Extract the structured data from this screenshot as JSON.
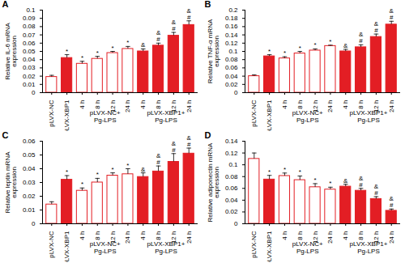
{
  "chart_data": [
    {
      "type": "bar",
      "title": "A",
      "y_label": "Relative IL-6 mRNA\nexpression",
      "categories": [
        "pLVX-NC",
        "pLVX-XBP1",
        "4 h",
        "8 h",
        "12 h",
        "24 h",
        "4 h",
        "8 h",
        "12 h",
        "24 h"
      ],
      "values": [
        0.019,
        0.042,
        0.035,
        0.041,
        0.048,
        0.053,
        0.05,
        0.057,
        0.069,
        0.082
      ],
      "errors": [
        0.002,
        0.004,
        0.003,
        0.003,
        0.002,
        0.003,
        0.003,
        0.003,
        0.004,
        0.005
      ],
      "annotations": [
        null,
        "*",
        "*",
        "*",
        "*",
        "*",
        "&",
        "&\n#",
        "&\n#",
        "&\n#"
      ],
      "color": "#e31e24",
      "colors": [
        "#ffffff",
        "#e31e24",
        "#ffffff",
        "#ffffff",
        "#ffffff",
        "#ffffff",
        "#e31e24",
        "#e31e24",
        "#e31e24",
        "#e31e24"
      ],
      "groups": [
        {
          "label": "pLVX-NC+\nPg-LPS",
          "members": [
            2,
            3,
            4,
            5
          ]
        },
        {
          "label": "pLVX-XBP1+\nPg-LPS",
          "members": [
            6,
            7,
            8,
            9
          ]
        }
      ],
      "ylim": [
        0,
        0.1
      ],
      "yticks": [
        0,
        0.01,
        0.02,
        0.03,
        0.04,
        0.05,
        0.06,
        0.07,
        0.08,
        0.09,
        0.1
      ]
    },
    {
      "type": "bar",
      "title": "B",
      "y_label": "Relative TNF-α mRNA\nexpression",
      "categories": [
        "pLVX-NC",
        "pLVX-XBP1",
        "4 h",
        "8 h",
        "12 h",
        "24 h",
        "4 h",
        "8 h",
        "12 h",
        "24 h"
      ],
      "values": [
        0.04,
        0.088,
        0.083,
        0.095,
        0.102,
        0.113,
        0.1,
        0.11,
        0.135,
        0.165
      ],
      "errors": [
        0.003,
        0.004,
        0.004,
        0.005,
        0.004,
        0.002,
        0.005,
        0.006,
        0.007,
        0.008
      ],
      "annotations": [
        null,
        "*",
        "*",
        "*",
        "*",
        "*",
        "&",
        "&\n#",
        "&\n#",
        "&\n#"
      ],
      "color": "#e31e24",
      "colors": [
        "#ffffff",
        "#e31e24",
        "#ffffff",
        "#ffffff",
        "#ffffff",
        "#ffffff",
        "#e31e24",
        "#e31e24",
        "#e31e24",
        "#e31e24"
      ],
      "groups": [
        {
          "label": "pLVX-NC+\nPg-LPS",
          "members": [
            2,
            3,
            4,
            5
          ]
        },
        {
          "label": "pLVX-XBP1+\nPg-LPS",
          "members": [
            6,
            7,
            8,
            9
          ]
        }
      ],
      "ylim": [
        0,
        0.2
      ],
      "yticks": [
        0,
        0.02,
        0.04,
        0.06,
        0.08,
        0.1,
        0.12,
        0.14,
        0.16,
        0.18,
        0.2
      ]
    },
    {
      "type": "bar",
      "title": "C",
      "y_label": "Relative leptin mRNA\nexpression",
      "categories": [
        "pLVX-NC",
        "pLVX-XBP1",
        "4 h",
        "8 h",
        "12 h",
        "24 h",
        "4 h",
        "8 h",
        "12 h",
        "24 h"
      ],
      "values": [
        0.014,
        0.032,
        0.024,
        0.03,
        0.035,
        0.036,
        0.034,
        0.038,
        0.045,
        0.051
      ],
      "errors": [
        0.002,
        0.003,
        0.002,
        0.003,
        0.002,
        0.004,
        0.003,
        0.004,
        0.006,
        0.004
      ],
      "annotations": [
        null,
        "*",
        "*",
        "*",
        "*",
        "*",
        "&",
        "&\n#",
        "&\n#",
        "&\n#"
      ],
      "color": "#e31e24",
      "colors": [
        "#ffffff",
        "#e31e24",
        "#ffffff",
        "#ffffff",
        "#ffffff",
        "#ffffff",
        "#e31e24",
        "#e31e24",
        "#e31e24",
        "#e31e24"
      ],
      "groups": [
        {
          "label": "pLVX-NC+\nPg-LPS",
          "members": [
            2,
            3,
            4,
            5
          ]
        },
        {
          "label": "pLVX-XBP1+\nPg-LPS",
          "members": [
            6,
            7,
            8,
            9
          ]
        }
      ],
      "ylim": [
        0,
        0.06
      ],
      "yticks": [
        0,
        0.01,
        0.02,
        0.03,
        0.04,
        0.05,
        0.06
      ]
    },
    {
      "type": "bar",
      "title": "D",
      "y_label": "Relative adiponectin mRNA\nexpression",
      "categories": [
        "pLVX-NC",
        "pLVX-XBP1",
        "4 h",
        "8 h",
        "12 h",
        "24 h",
        "4 h",
        "8 h",
        "12 h",
        "24 h"
      ],
      "values": [
        0.11,
        0.075,
        0.081,
        0.074,
        0.062,
        0.058,
        0.063,
        0.056,
        0.042,
        0.022
      ],
      "errors": [
        0.01,
        0.007,
        0.005,
        0.007,
        0.006,
        0.004,
        0.004,
        0.004,
        0.004,
        0.003
      ],
      "annotations": [
        null,
        "*",
        "*",
        "*",
        "*",
        "*",
        "&",
        "&\n#",
        "&\n#",
        "&\n#"
      ],
      "color": "#e31e24",
      "colors": [
        "#ffffff",
        "#e31e24",
        "#ffffff",
        "#ffffff",
        "#ffffff",
        "#ffffff",
        "#e31e24",
        "#e31e24",
        "#e31e24",
        "#e31e24"
      ],
      "groups": [
        {
          "label": "pLVX-NC+\nPg-LPS",
          "members": [
            2,
            3,
            4,
            5
          ]
        },
        {
          "label": "pLVX-XBP1+\nPg-LPS",
          "members": [
            6,
            7,
            8,
            9
          ]
        }
      ],
      "ylim": [
        0,
        0.14
      ],
      "yticks": [
        0,
        0.02,
        0.04,
        0.06,
        0.08,
        0.1,
        0.12,
        0.14
      ]
    }
  ]
}
